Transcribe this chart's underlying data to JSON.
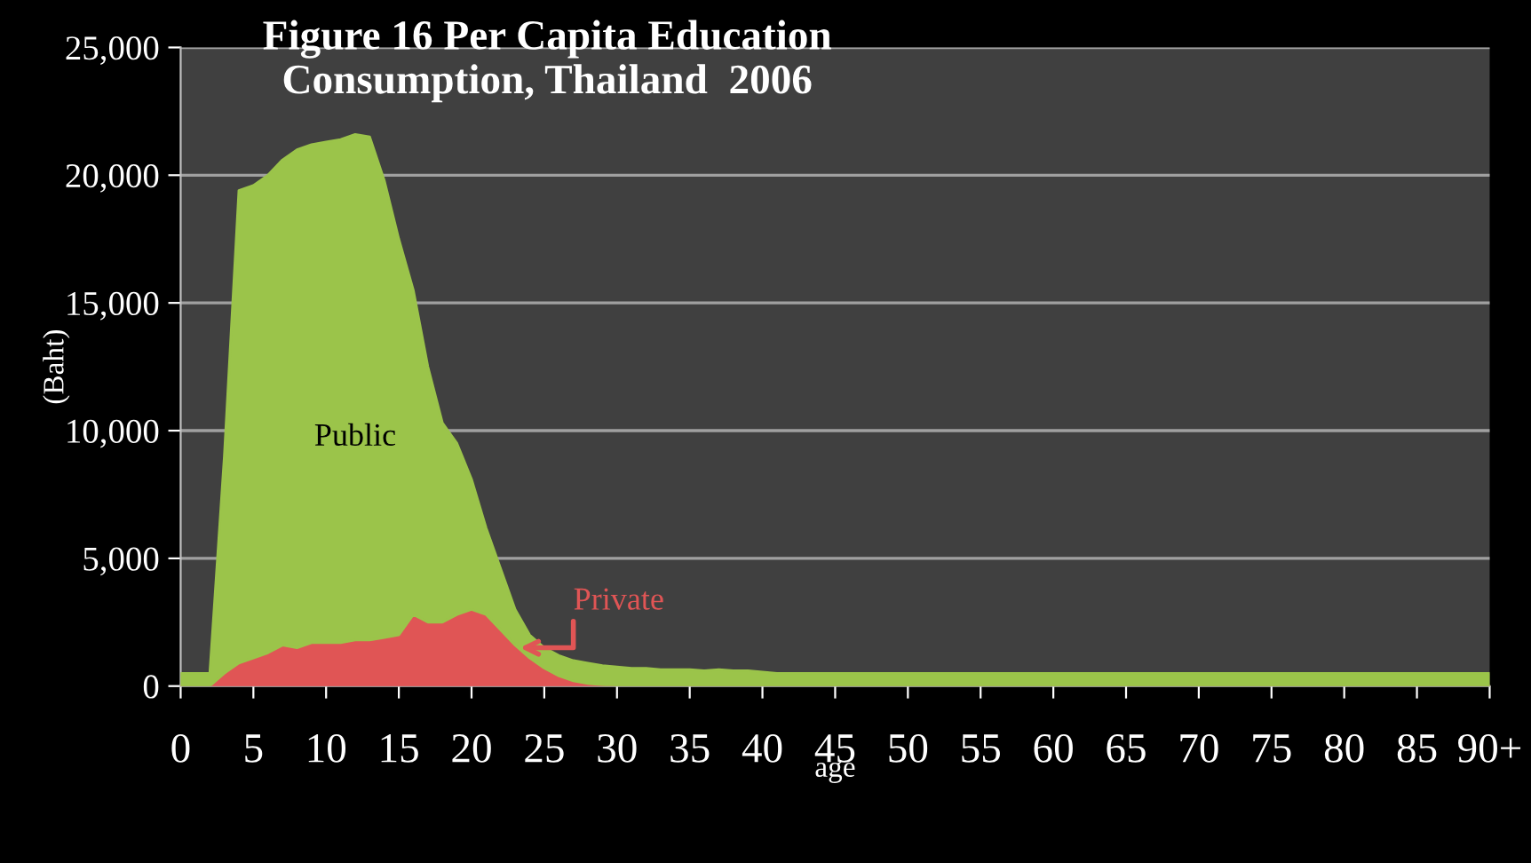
{
  "chart_data": {
    "type": "area",
    "stacked": true,
    "title": "Figure 16 Per Capita Education\nConsumption, Thailand  2006",
    "xlabel": "age",
    "ylabel": "(Baht)",
    "x": [
      0,
      1,
      2,
      3,
      4,
      5,
      6,
      7,
      8,
      9,
      10,
      11,
      12,
      13,
      14,
      15,
      16,
      17,
      18,
      19,
      20,
      21,
      22,
      23,
      24,
      25,
      26,
      27,
      28,
      29,
      30,
      31,
      32,
      33,
      34,
      35,
      36,
      37,
      38,
      39,
      40,
      41,
      42,
      43,
      44,
      45,
      46,
      47,
      48,
      49,
      50,
      51,
      52,
      53,
      54,
      55,
      56,
      57,
      58,
      59,
      60,
      61,
      62,
      63,
      64,
      65,
      66,
      67,
      68,
      69,
      70,
      71,
      72,
      73,
      74,
      75,
      76,
      77,
      78,
      79,
      80,
      81,
      82,
      83,
      84,
      85,
      86,
      87,
      88,
      89,
      90
    ],
    "xlim": [
      0,
      90
    ],
    "xticks": [
      0,
      5,
      10,
      15,
      20,
      25,
      30,
      35,
      40,
      45,
      50,
      55,
      60,
      65,
      70,
      75,
      80,
      85,
      {
        "value": 90,
        "label": "90+"
      }
    ],
    "ylim": [
      0,
      25000
    ],
    "yticks": [
      {
        "value": 0,
        "label": "0"
      },
      {
        "value": 5000,
        "label": "5,000"
      },
      {
        "value": 10000,
        "label": "10,000"
      },
      {
        "value": 15000,
        "label": "15,000"
      },
      {
        "value": 20000,
        "label": "20,000"
      },
      {
        "value": 25000,
        "label": "25,000"
      }
    ],
    "grid": "y",
    "legend": false,
    "series": [
      {
        "name": "Private",
        "color": "#e05555",
        "values": [
          0,
          0,
          0,
          500,
          900,
          1100,
          1300,
          1600,
          1500,
          1700,
          1700,
          1700,
          1800,
          1800,
          1900,
          2000,
          2800,
          2500,
          2500,
          2800,
          3000,
          2800,
          2200,
          1600,
          1100,
          700,
          400,
          200,
          100,
          50,
          0,
          0,
          0,
          0,
          0,
          0,
          0,
          0,
          0,
          0,
          0,
          0,
          0,
          0,
          0,
          0,
          0,
          0,
          0,
          0,
          0,
          0,
          0,
          0,
          0,
          0,
          0,
          0,
          0,
          0,
          0,
          0,
          0,
          0,
          0,
          0,
          0,
          0,
          0,
          0,
          0,
          0,
          0,
          0,
          0,
          0,
          0,
          0,
          0,
          0,
          0,
          0,
          0,
          0,
          0,
          0,
          0,
          0,
          0,
          0,
          0
        ]
      },
      {
        "name": "Public",
        "color": "#9bc44a",
        "values": [
          500,
          500,
          500,
          8500,
          18500,
          18500,
          18700,
          19000,
          19500,
          19500,
          19600,
          19700,
          19800,
          19700,
          17900,
          15500,
          12700,
          10000,
          7800,
          6700,
          5100,
          3400,
          2400,
          1400,
          900,
          800,
          800,
          800,
          800,
          750,
          750,
          700,
          700,
          650,
          650,
          650,
          600,
          650,
          600,
          600,
          550,
          500,
          500,
          500,
          500,
          500,
          500,
          500,
          500,
          500,
          500,
          500,
          500,
          500,
          500,
          500,
          500,
          500,
          500,
          500,
          500,
          500,
          500,
          500,
          500,
          500,
          500,
          500,
          500,
          500,
          500,
          500,
          500,
          500,
          500,
          500,
          500,
          500,
          500,
          500,
          500,
          500,
          500,
          500,
          500,
          500,
          500,
          500,
          500,
          500,
          500
        ]
      }
    ]
  }
}
